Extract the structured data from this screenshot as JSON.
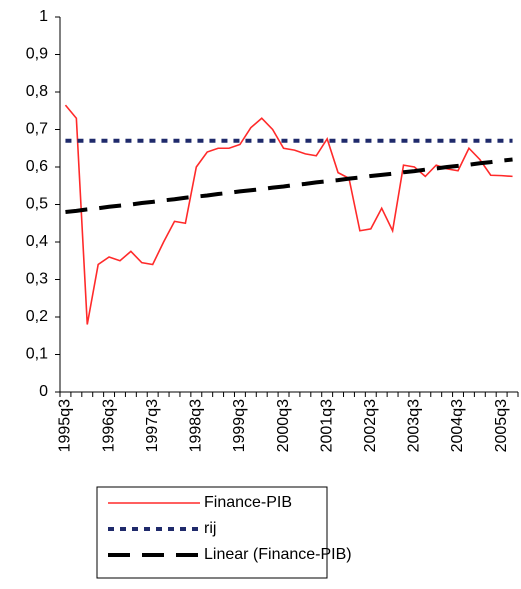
{
  "chart_data": {
    "type": "line",
    "categories": [
      "1995q3",
      null,
      null,
      null,
      "1996q3",
      null,
      null,
      null,
      "1997q3",
      null,
      null,
      null,
      "1998q3",
      null,
      null,
      null,
      "1999q3",
      null,
      null,
      null,
      "2000q3",
      null,
      null,
      null,
      "2001q3",
      null,
      null,
      null,
      "2002q3",
      null,
      null,
      null,
      "2003q3",
      null,
      null,
      null,
      "2004q3",
      null,
      null,
      null,
      "2005q3",
      null
    ],
    "series": [
      {
        "name": "Finance-PIB",
        "color": "#ff2a2a",
        "style": "solid",
        "values": [
          0.765,
          0.73,
          0.18,
          0.34,
          0.36,
          0.35,
          0.375,
          0.345,
          0.34,
          0.4,
          0.455,
          0.45,
          0.6,
          0.64,
          0.65,
          0.65,
          0.66,
          0.705,
          0.73,
          0.7,
          0.65,
          0.645,
          0.635,
          0.63,
          0.675,
          0.585,
          0.57,
          0.43,
          0.435,
          0.49,
          0.43,
          0.605,
          0.6,
          0.575,
          0.605,
          0.595,
          0.59,
          0.65,
          0.62,
          0.578,
          0.577,
          0.575
        ]
      },
      {
        "name": "rij",
        "color": "#1f2a6b",
        "style": "dotted",
        "values": [
          0.67,
          0.67,
          0.67,
          0.67,
          0.67,
          0.67,
          0.67,
          0.67,
          0.67,
          0.67,
          0.67,
          0.67,
          0.67,
          0.67,
          0.67,
          0.67,
          0.67,
          0.67,
          0.67,
          0.67,
          0.67,
          0.67,
          0.67,
          0.67,
          0.67,
          0.67,
          0.67,
          0.67,
          0.67,
          0.67,
          0.67,
          0.67,
          0.67,
          0.67,
          0.67,
          0.67,
          0.67,
          0.67,
          0.67,
          0.67,
          0.67,
          0.67
        ]
      },
      {
        "name": "Linear (Finance-PIB)",
        "color": "#000000",
        "style": "dashed",
        "values": [
          0.48,
          0.483,
          0.487,
          0.49,
          0.494,
          0.497,
          0.5,
          0.504,
          0.507,
          0.511,
          0.514,
          0.518,
          0.521,
          0.524,
          0.528,
          0.531,
          0.535,
          0.538,
          0.541,
          0.545,
          0.548,
          0.552,
          0.555,
          0.559,
          0.562,
          0.565,
          0.569,
          0.572,
          0.576,
          0.579,
          0.582,
          0.586,
          0.589,
          0.593,
          0.596,
          0.6,
          0.603,
          0.606,
          0.61,
          0.613,
          0.617,
          0.62
        ]
      }
    ],
    "ylim": [
      0,
      1
    ],
    "yticks": [
      0,
      {
        "value": 0.1,
        "label": "0,1"
      },
      {
        "value": 0.2,
        "label": "0,2"
      },
      {
        "value": 0.3,
        "label": "0,3"
      },
      {
        "value": 0.4,
        "label": "0,4"
      },
      {
        "value": 0.5,
        "label": "0,5"
      },
      {
        "value": 0.6,
        "label": "0,6"
      },
      {
        "value": 0.7,
        "label": "0,7"
      },
      {
        "value": 0.8,
        "label": "0,8"
      },
      {
        "value": 0.9,
        "label": "0,9"
      },
      1
    ],
    "grid": false
  }
}
